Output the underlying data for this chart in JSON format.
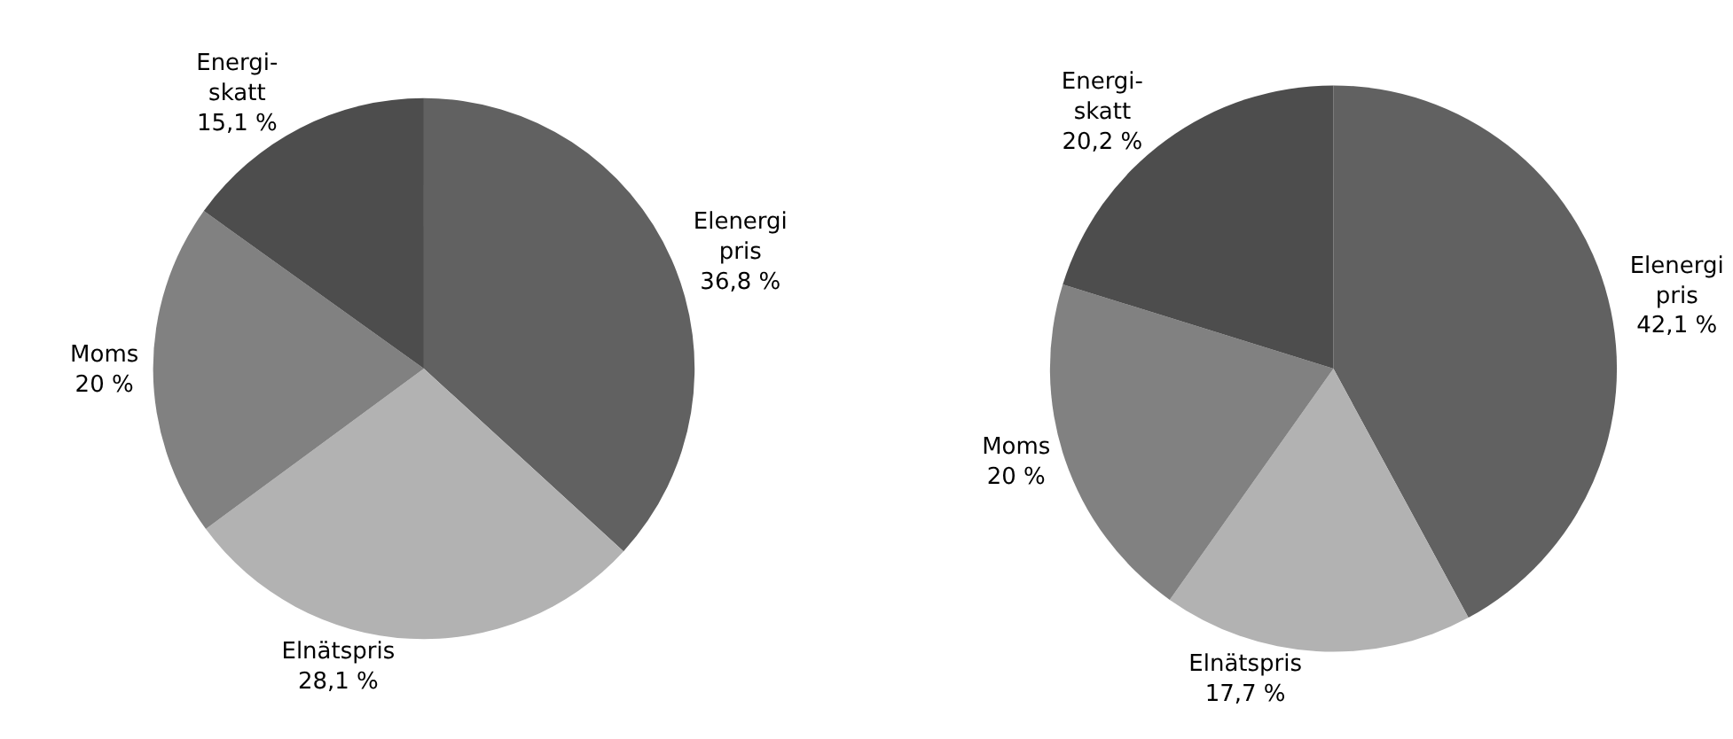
{
  "chart_data": [
    {
      "type": "pie",
      "categories": [
        "Elenergi\npris",
        "Elnätspris",
        "Moms",
        "Energi-\nskatt"
      ],
      "values": [
        36.8,
        28.1,
        20,
        15.1
      ],
      "value_labels": [
        "36,8 %",
        "28,1 %",
        "20 %",
        "15,1 %"
      ],
      "colors": [
        "#616161",
        "#b2b2b2",
        "#818181",
        "#4d4d4d"
      ],
      "legend": false
    },
    {
      "type": "pie",
      "categories": [
        "Elenergi\npris",
        "Elnätspris",
        "Moms",
        "Energi-\nskatt"
      ],
      "values": [
        42.1,
        17.7,
        20,
        20.2
      ],
      "value_labels": [
        "42,1 %",
        "17,7 %",
        "20 %",
        "20,2 %"
      ],
      "colors": [
        "#616161",
        "#b2b2b2",
        "#818181",
        "#4d4d4d"
      ],
      "legend": false
    }
  ]
}
